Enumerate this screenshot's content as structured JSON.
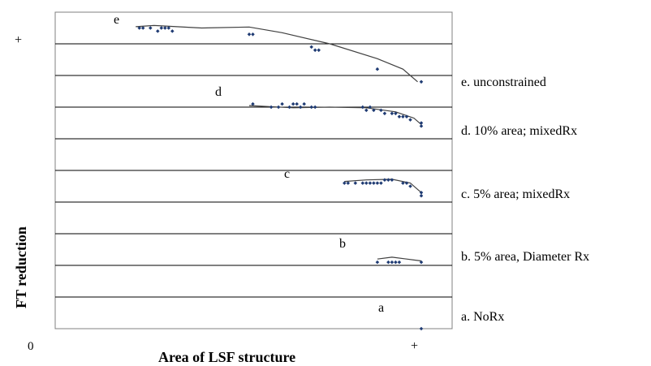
{
  "chart_data": {
    "type": "scatter",
    "xlabel": "Area of LSF structure",
    "ylabel": "FT reduction",
    "x_ticks": {
      "min_label": "0",
      "max_label": "+"
    },
    "y_ticks": {
      "max_label": "+"
    },
    "xlim": [
      0,
      1
    ],
    "ylim": [
      0,
      1
    ],
    "grid": "horizontal",
    "series": [
      {
        "letter": "e",
        "name": "e. unconstrained",
        "points": [
          [
            0.23,
            0.95
          ],
          [
            0.24,
            0.95
          ],
          [
            0.26,
            0.95
          ],
          [
            0.28,
            0.94
          ],
          [
            0.29,
            0.95
          ],
          [
            0.3,
            0.95
          ],
          [
            0.31,
            0.95
          ],
          [
            0.32,
            0.94
          ],
          [
            0.53,
            0.93
          ],
          [
            0.54,
            0.93
          ],
          [
            0.7,
            0.89
          ],
          [
            0.71,
            0.88
          ],
          [
            0.72,
            0.88
          ],
          [
            0.88,
            0.82
          ],
          [
            1.0,
            0.78
          ]
        ],
        "trend": [
          [
            0.22,
            0.954
          ],
          [
            0.27,
            0.958
          ],
          [
            0.4,
            0.95
          ],
          [
            0.53,
            0.953
          ],
          [
            0.62,
            0.935
          ],
          [
            0.75,
            0.9
          ],
          [
            0.88,
            0.853
          ],
          [
            0.95,
            0.82
          ],
          [
            0.99,
            0.78
          ]
        ]
      },
      {
        "letter": "d",
        "name": "d. 10% area; mixedRx",
        "points": [
          [
            0.54,
            0.71
          ],
          [
            0.59,
            0.7
          ],
          [
            0.61,
            0.7
          ],
          [
            0.62,
            0.71
          ],
          [
            0.64,
            0.7
          ],
          [
            0.65,
            0.71
          ],
          [
            0.66,
            0.71
          ],
          [
            0.67,
            0.7
          ],
          [
            0.68,
            0.71
          ],
          [
            0.7,
            0.7
          ],
          [
            0.71,
            0.7
          ],
          [
            0.84,
            0.7
          ],
          [
            0.85,
            0.69
          ],
          [
            0.86,
            0.7
          ],
          [
            0.87,
            0.69
          ],
          [
            0.89,
            0.69
          ],
          [
            0.9,
            0.68
          ],
          [
            0.92,
            0.68
          ],
          [
            0.93,
            0.68
          ],
          [
            0.94,
            0.67
          ],
          [
            0.95,
            0.67
          ],
          [
            0.96,
            0.67
          ],
          [
            0.97,
            0.66
          ],
          [
            1.0,
            0.64
          ],
          [
            1.0,
            0.65
          ]
        ],
        "trend": [
          [
            0.53,
            0.705
          ],
          [
            0.65,
            0.698
          ],
          [
            0.75,
            0.7
          ],
          [
            0.85,
            0.698
          ],
          [
            0.93,
            0.685
          ],
          [
            0.98,
            0.665
          ],
          [
            1.0,
            0.645
          ]
        ]
      },
      {
        "letter": "c",
        "name": "c. 5% area; mixedRx",
        "points": [
          [
            0.79,
            0.46
          ],
          [
            0.8,
            0.46
          ],
          [
            0.82,
            0.46
          ],
          [
            0.84,
            0.46
          ],
          [
            0.85,
            0.46
          ],
          [
            0.86,
            0.46
          ],
          [
            0.87,
            0.46
          ],
          [
            0.88,
            0.46
          ],
          [
            0.89,
            0.46
          ],
          [
            0.9,
            0.47
          ],
          [
            0.91,
            0.47
          ],
          [
            0.92,
            0.47
          ],
          [
            0.95,
            0.46
          ],
          [
            0.96,
            0.46
          ],
          [
            0.97,
            0.45
          ],
          [
            1.0,
            0.43
          ],
          [
            1.0,
            0.42
          ]
        ],
        "trend": [
          [
            0.79,
            0.465
          ],
          [
            0.85,
            0.47
          ],
          [
            0.92,
            0.472
          ],
          [
            0.97,
            0.46
          ],
          [
            1.0,
            0.43
          ]
        ]
      },
      {
        "letter": "b",
        "name": "b. 5% area, Diameter Rx",
        "points": [
          [
            0.88,
            0.21
          ],
          [
            0.91,
            0.21
          ],
          [
            0.92,
            0.21
          ],
          [
            0.93,
            0.21
          ],
          [
            0.94,
            0.21
          ],
          [
            1.0,
            0.21
          ]
        ],
        "trend": [
          [
            0.88,
            0.22
          ],
          [
            0.92,
            0.226
          ],
          [
            0.96,
            0.22
          ],
          [
            1.0,
            0.214
          ]
        ]
      },
      {
        "letter": "a",
        "name": "a. NoRx",
        "points": [
          [
            1.0,
            0.0
          ]
        ],
        "trend": []
      }
    ]
  }
}
